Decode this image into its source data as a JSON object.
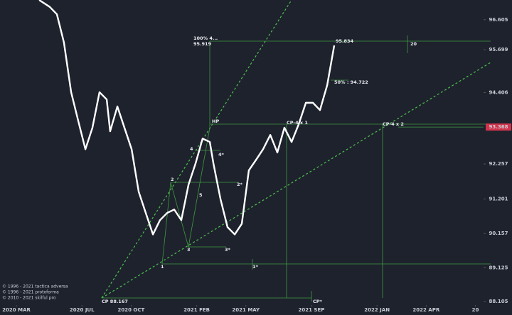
{
  "chart_data": {
    "type": "line",
    "x": [
      1.39,
      2.04,
      2.47,
      2.9,
      3.34,
      3.77,
      4.21,
      4.64,
      5.07,
      5.51,
      5.72,
      6.16,
      6.59,
      7.03,
      7.46,
      7.89,
      8.33,
      8.76,
      9.2,
      9.63,
      10.06,
      10.5,
      10.93,
      11.36,
      11.8,
      12.02,
      12.45,
      12.88,
      13.32,
      13.75,
      14.18,
      14.62,
      15.05,
      15.49,
      15.92,
      16.35,
      16.79,
      17.22,
      17.66,
      18.09,
      18.52,
      18.96,
      19.39
    ],
    "series": [
      {
        "color": "#ffffff",
        "values": [
          97.2,
          96.99,
          96.77,
          95.92,
          94.42,
          93.56,
          92.7,
          93.35,
          94.42,
          94.2,
          93.24,
          93.99,
          93.35,
          92.7,
          91.42,
          90.78,
          90.13,
          90.56,
          90.78,
          90.88,
          90.56,
          91.63,
          92.27,
          93.02,
          92.92,
          92.27,
          91.2,
          90.35,
          90.13,
          90.45,
          92.06,
          92.38,
          92.7,
          93.13,
          92.6,
          93.35,
          92.92,
          93.45,
          94.1,
          94.1,
          93.88,
          94.63,
          95.83
        ]
      }
    ],
    "xlim": [
      -1,
      28.5
    ],
    "xticks": [
      {
        "value": 0,
        "label": "2020 MAR"
      },
      {
        "value": 4,
        "label": "2020 JUL"
      },
      {
        "value": 7,
        "label": "2020 OCT"
      },
      {
        "value": 11,
        "label": "2021 FEB"
      },
      {
        "value": 14,
        "label": "2021 MAY"
      },
      {
        "value": 18,
        "label": "2021 SEP"
      },
      {
        "value": 22,
        "label": "2022 JAN"
      },
      {
        "value": 25,
        "label": "2022 APR"
      },
      {
        "value": 28,
        "label": "20"
      }
    ],
    "ylim": [
      87.7,
      97.2
    ],
    "yticks": [
      {
        "value": 96.605,
        "label": "96.605"
      },
      {
        "value": 95.699,
        "label": "95.699"
      },
      {
        "value": 94.406,
        "label": "94.406"
      },
      {
        "value": 92.257,
        "label": "92.257"
      },
      {
        "value": 91.201,
        "label": "91.201"
      },
      {
        "value": 90.157,
        "label": "90.157"
      },
      {
        "value": 89.125,
        "label": "89.125"
      },
      {
        "value": 88.105,
        "label": "88.105"
      }
    ],
    "price_marker": {
      "value": 93.368,
      "label": "93.368",
      "color": "#d1344c"
    },
    "annotations": {
      "level_100": "100%  4...",
      "level_100_value": "95.919",
      "last": "95.834",
      "count": "20",
      "level_50": "50% : 94.722",
      "hp": "HP",
      "cp1": "CP-4 x 1",
      "cp2": "CP-4 x 2",
      "p4": "4",
      "p4s": "4*",
      "p2": "2",
      "p2s": "2*",
      "p5": "5",
      "p3": "3",
      "p3s": "3*",
      "p1": "1",
      "p1s": "1*",
      "cp_low": "CP 88.167",
      "cp_star": "CP*"
    },
    "copyright": [
      "© 1996 - 2021 tactica adversa",
      "© 1996 - 2021 protoforma",
      "© 2010 - 2021 skilful pro"
    ]
  }
}
